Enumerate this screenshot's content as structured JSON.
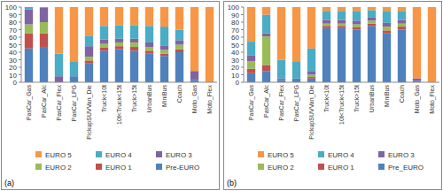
{
  "chart_data": [
    {
      "type": "bar",
      "title": "(a)",
      "stacked": true,
      "grid": false,
      "legend": "bottom",
      "categories": [
        "PasCar_Gas",
        "PasCar_Alc",
        "PasCar_Flex",
        "PasCar_LPG",
        "PickupSUVVan_Die",
        "Truck<10t",
        "10t<Truck<15t",
        "Truck>15t",
        "UrbanBus",
        "MiniBus",
        "Coach",
        "Moto_Gas",
        "Moto_Flex"
      ],
      "series": [
        {
          "name": "Pre-EURO",
          "color": "#4f81bd",
          "values": [
            45,
            47,
            0,
            8,
            25,
            42,
            44,
            42,
            38,
            35,
            40,
            3,
            0
          ]
        },
        {
          "name": "EURO 1",
          "color": "#c0504d",
          "values": [
            20,
            18,
            0,
            0,
            4,
            4,
            4,
            5,
            4,
            3,
            4,
            0,
            0
          ]
        },
        {
          "name": "EURO 2",
          "color": "#9bbb59",
          "values": [
            12,
            15,
            0,
            0,
            5,
            5,
            5,
            6,
            5,
            5,
            6,
            0,
            0
          ]
        },
        {
          "name": "EURO 3",
          "color": "#8064a2",
          "values": [
            20,
            19,
            8,
            0,
            14,
            6,
            5,
            5,
            6,
            6,
            6,
            12,
            0
          ]
        },
        {
          "name": "EURO 4",
          "color": "#4bacc6",
          "values": [
            3,
            1,
            30,
            20,
            14,
            18,
            18,
            18,
            22,
            25,
            14,
            0,
            0
          ]
        },
        {
          "name": "EURO 5",
          "color": "#f79646",
          "values": [
            0,
            0,
            62,
            72,
            38,
            25,
            24,
            24,
            25,
            26,
            30,
            85,
            100
          ]
        }
      ],
      "ylim": [
        0,
        100
      ],
      "yticks": [
        0,
        10,
        20,
        30,
        40,
        50,
        60,
        70,
        80,
        90,
        100
      ]
    },
    {
      "type": "bar",
      "title": "(b)",
      "stacked": true,
      "grid": false,
      "legend": "bottom",
      "categories": [
        "PasCar_Gas",
        "PasCar_Alc",
        "PasCar_Flex",
        "PasCar_LPG",
        "PickupSUVVan_Die",
        "Truck<10t",
        "10t<Truck<15t",
        "Truck>15t",
        "UrbanBus",
        "MiniBus",
        "Coach",
        "Moto_Gas",
        "Moto_Flex"
      ],
      "series": [
        {
          "name": "Pre_EURO",
          "color": "#4f81bd",
          "values": [
            12,
            15,
            3,
            5,
            5,
            72,
            72,
            70,
            75,
            65,
            70,
            2,
            0
          ]
        },
        {
          "name": "EURO 1",
          "color": "#c0504d",
          "values": [
            6,
            8,
            0,
            0,
            2,
            3,
            3,
            3,
            3,
            4,
            4,
            0,
            0
          ]
        },
        {
          "name": "EURO 2",
          "color": "#9bbb59",
          "values": [
            10,
            38,
            0,
            0,
            3,
            3,
            3,
            4,
            4,
            5,
            4,
            0,
            0
          ]
        },
        {
          "name": "EURO 3",
          "color": "#8064a2",
          "values": [
            8,
            4,
            2,
            0,
            5,
            5,
            5,
            5,
            4,
            5,
            5,
            3,
            0
          ]
        },
        {
          "name": "EURO 4",
          "color": "#4bacc6",
          "values": [
            18,
            25,
            25,
            23,
            30,
            12,
            12,
            13,
            10,
            16,
            12,
            0,
            0
          ]
        },
        {
          "name": "EURO 5",
          "color": "#f79646",
          "values": [
            46,
            10,
            70,
            72,
            55,
            5,
            5,
            5,
            4,
            5,
            5,
            95,
            100
          ]
        }
      ],
      "ylim": [
        0,
        100
      ],
      "yticks": [
        0,
        10,
        20,
        30,
        40,
        50,
        60,
        70,
        80,
        90,
        100
      ]
    }
  ]
}
